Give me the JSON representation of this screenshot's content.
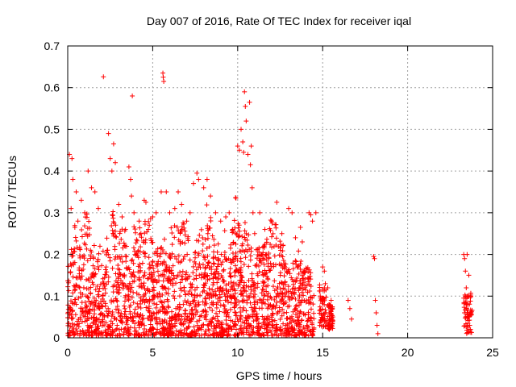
{
  "chart_data": {
    "type": "scatter",
    "title": "Day 007 of 2016, Rate Of TEC Index for receiver iqal",
    "xlabel": "GPS time / hours",
    "ylabel": "ROTI / TECUs",
    "xlim": [
      0,
      25
    ],
    "ylim": [
      0,
      0.7
    ],
    "x_ticks": [
      "0",
      "5",
      "10",
      "15",
      "20",
      "25"
    ],
    "y_ticks": [
      "0",
      "0.1",
      "0.2",
      "0.3",
      "0.4",
      "0.5",
      "0.6",
      "0.7"
    ],
    "grid": true,
    "marker": "plus",
    "color": "#ff0000",
    "series": [
      {
        "points": [
          [
            0.1,
            0.44
          ],
          [
            0.25,
            0.43
          ],
          [
            0.3,
            0.38
          ],
          [
            0.5,
            0.35
          ],
          [
            0.2,
            0.31
          ],
          [
            0.6,
            0.28
          ],
          [
            0.8,
            0.33
          ],
          [
            1.0,
            0.3
          ],
          [
            1.2,
            0.4
          ],
          [
            1.4,
            0.36
          ],
          [
            1.6,
            0.35
          ],
          [
            1.8,
            0.31
          ],
          [
            2.1,
            0.626
          ],
          [
            2.4,
            0.49
          ],
          [
            2.5,
            0.43
          ],
          [
            2.6,
            0.4
          ],
          [
            2.7,
            0.465
          ],
          [
            2.8,
            0.42
          ],
          [
            3.0,
            0.32
          ],
          [
            3.2,
            0.29
          ],
          [
            3.4,
            0.26
          ],
          [
            3.6,
            0.41
          ],
          [
            3.7,
            0.38
          ],
          [
            3.75,
            0.34
          ],
          [
            3.8,
            0.58
          ],
          [
            3.9,
            0.3
          ],
          [
            4.2,
            0.28
          ],
          [
            4.5,
            0.33
          ],
          [
            4.6,
            0.325
          ],
          [
            4.8,
            0.27
          ],
          [
            5.0,
            0.29
          ],
          [
            5.2,
            0.3
          ],
          [
            5.5,
            0.35
          ],
          [
            5.6,
            0.635
          ],
          [
            5.62,
            0.625
          ],
          [
            5.65,
            0.615
          ],
          [
            5.8,
            0.35
          ],
          [
            6.0,
            0.3
          ],
          [
            6.3,
            0.31
          ],
          [
            6.5,
            0.35
          ],
          [
            6.7,
            0.32
          ],
          [
            7.0,
            0.28
          ],
          [
            7.2,
            0.3
          ],
          [
            7.4,
            0.37
          ],
          [
            7.6,
            0.395
          ],
          [
            7.7,
            0.38
          ],
          [
            8.0,
            0.36
          ],
          [
            8.2,
            0.38
          ],
          [
            8.4,
            0.34
          ],
          [
            8.7,
            0.3
          ],
          [
            9.0,
            0.28
          ],
          [
            9.3,
            0.29
          ],
          [
            9.5,
            0.3
          ],
          [
            9.7,
            0.26
          ],
          [
            9.9,
            0.335
          ],
          [
            10.0,
            0.46
          ],
          [
            10.1,
            0.45
          ],
          [
            10.2,
            0.5
          ],
          [
            10.3,
            0.47
          ],
          [
            10.35,
            0.445
          ],
          [
            10.4,
            0.59
          ],
          [
            10.45,
            0.555
          ],
          [
            10.5,
            0.52
          ],
          [
            10.6,
            0.44
          ],
          [
            10.7,
            0.565
          ],
          [
            10.75,
            0.415
          ],
          [
            10.8,
            0.46
          ],
          [
            10.85,
            0.36
          ],
          [
            10.9,
            0.3
          ],
          [
            11.0,
            0.25
          ],
          [
            11.3,
            0.3
          ],
          [
            11.6,
            0.26
          ],
          [
            12.0,
            0.28
          ],
          [
            12.3,
            0.325
          ],
          [
            12.6,
            0.25
          ],
          [
            13.0,
            0.31
          ],
          [
            13.2,
            0.3
          ],
          [
            13.4,
            0.24
          ],
          [
            13.8,
            0.23
          ],
          [
            14.2,
            0.3
          ],
          [
            14.3,
            0.295
          ],
          [
            14.4,
            0.28
          ],
          [
            14.6,
            0.3
          ],
          [
            15.0,
            0.17
          ],
          [
            15.1,
            0.16
          ],
          [
            15.3,
            0.12
          ],
          [
            15.5,
            0.09
          ],
          [
            15.6,
            0.05
          ],
          [
            16.5,
            0.09
          ],
          [
            16.6,
            0.07
          ],
          [
            16.7,
            0.045
          ],
          [
            18.0,
            0.195
          ],
          [
            18.05,
            0.19
          ],
          [
            18.1,
            0.09
          ],
          [
            18.15,
            0.06
          ],
          [
            18.2,
            0.03
          ],
          [
            18.25,
            0.01
          ],
          [
            23.3,
            0.2
          ],
          [
            23.35,
            0.19
          ],
          [
            23.4,
            0.16
          ],
          [
            23.45,
            0.12
          ],
          [
            23.5,
            0.1
          ],
          [
            23.55,
            0.08
          ],
          [
            23.6,
            0.05
          ],
          [
            23.65,
            0.03
          ],
          [
            23.7,
            0.02
          ],
          [
            23.5,
            0.2
          ],
          [
            23.6,
            0.15
          ]
        ]
      }
    ]
  }
}
